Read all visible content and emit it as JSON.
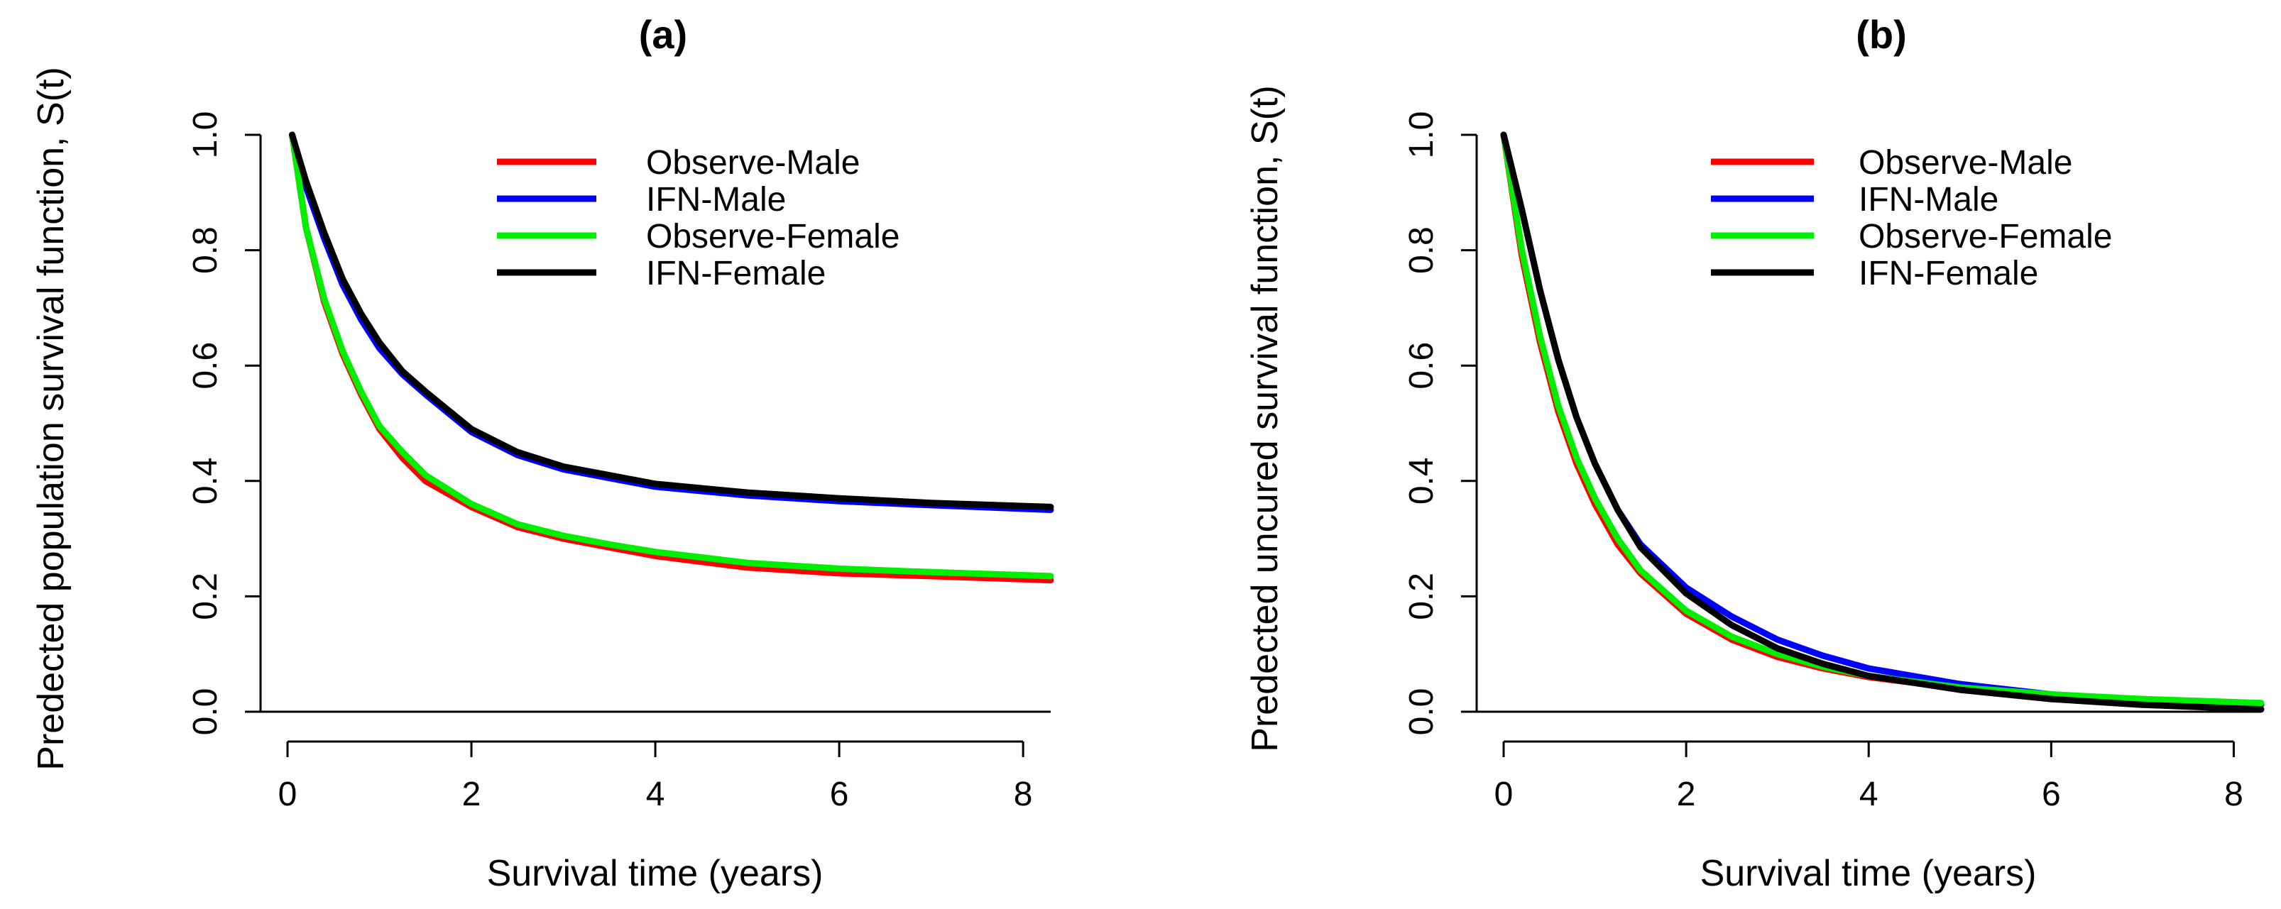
{
  "chart_data": [
    {
      "type": "line",
      "title": "(a)",
      "xlabel": "Survival time (years)",
      "ylabel": "Predected population survival function, S(t)",
      "xlim": [
        0,
        8.3
      ],
      "ylim": [
        0,
        1
      ],
      "xticks": [
        0,
        2,
        4,
        6,
        8
      ],
      "yticks": [
        0.0,
        0.2,
        0.4,
        0.6,
        0.8,
        1.0
      ],
      "ytick_labels": [
        "0.0",
        "0.2",
        "0.4",
        "0.6",
        "0.8",
        "1.0"
      ],
      "grid": false,
      "legend_position": "top-right",
      "series": [
        {
          "name": "Observe-Male",
          "color": "#ff0000",
          "x": [
            0.05,
            0.2,
            0.4,
            0.6,
            0.8,
            1.0,
            1.25,
            1.5,
            2.0,
            2.5,
            3.0,
            3.5,
            4.0,
            5.0,
            6.0,
            7.0,
            8.3
          ],
          "y": [
            1.0,
            0.84,
            0.71,
            0.62,
            0.55,
            0.49,
            0.44,
            0.4,
            0.355,
            0.32,
            0.3,
            0.285,
            0.27,
            0.25,
            0.24,
            0.235,
            0.228
          ]
        },
        {
          "name": "IFN-Male",
          "color": "#0000ff",
          "x": [
            0.05,
            0.2,
            0.4,
            0.6,
            0.8,
            1.0,
            1.25,
            1.5,
            2.0,
            2.5,
            3.0,
            3.5,
            4.0,
            5.0,
            6.0,
            7.0,
            8.3
          ],
          "y": [
            1.0,
            0.91,
            0.82,
            0.74,
            0.68,
            0.63,
            0.585,
            0.55,
            0.485,
            0.445,
            0.42,
            0.405,
            0.39,
            0.375,
            0.365,
            0.358,
            0.35
          ]
        },
        {
          "name": "Observe-Female",
          "color": "#00ee00",
          "x": [
            0.05,
            0.2,
            0.4,
            0.6,
            0.8,
            1.0,
            1.25,
            1.5,
            2.0,
            2.5,
            3.0,
            3.5,
            4.0,
            5.0,
            6.0,
            7.0,
            8.3
          ],
          "y": [
            1.0,
            0.84,
            0.715,
            0.625,
            0.555,
            0.495,
            0.45,
            0.41,
            0.36,
            0.325,
            0.305,
            0.29,
            0.277,
            0.258,
            0.248,
            0.242,
            0.235
          ]
        },
        {
          "name": "IFN-Female",
          "color": "#000000",
          "x": [
            0.05,
            0.2,
            0.4,
            0.6,
            0.8,
            1.0,
            1.25,
            1.5,
            2.0,
            2.5,
            3.0,
            3.5,
            4.0,
            5.0,
            6.0,
            7.0,
            8.3
          ],
          "y": [
            1.0,
            0.92,
            0.83,
            0.75,
            0.69,
            0.64,
            0.59,
            0.555,
            0.49,
            0.45,
            0.425,
            0.41,
            0.395,
            0.38,
            0.37,
            0.362,
            0.355
          ]
        }
      ]
    },
    {
      "type": "line",
      "title": "(b)",
      "xlabel": "Survival time (years)",
      "ylabel": "Predected uncured survival function, S(t)",
      "xlim": [
        0,
        8.3
      ],
      "ylim": [
        0,
        1
      ],
      "xticks": [
        0,
        2,
        4,
        6,
        8
      ],
      "yticks": [
        0.0,
        0.2,
        0.4,
        0.6,
        0.8,
        1.0
      ],
      "ytick_labels": [
        "0.0",
        "0.2",
        "0.4",
        "0.6",
        "0.8",
        "1.0"
      ],
      "grid": false,
      "legend_position": "top-right",
      "series": [
        {
          "name": "Observe-Male",
          "color": "#ff0000",
          "x": [
            0.0,
            0.2,
            0.4,
            0.6,
            0.8,
            1.0,
            1.25,
            1.5,
            2.0,
            2.5,
            3.0,
            3.5,
            4.0,
            5.0,
            6.0,
            7.0,
            8.3
          ],
          "y": [
            1.0,
            0.79,
            0.64,
            0.52,
            0.43,
            0.36,
            0.29,
            0.24,
            0.17,
            0.125,
            0.095,
            0.075,
            0.06,
            0.04,
            0.027,
            0.018,
            0.012
          ]
        },
        {
          "name": "IFN-Male",
          "color": "#0000ff",
          "x": [
            0.0,
            0.2,
            0.4,
            0.6,
            0.8,
            1.0,
            1.25,
            1.5,
            2.0,
            2.5,
            3.0,
            3.5,
            4.0,
            5.0,
            6.0,
            7.0,
            8.3
          ],
          "y": [
            1.0,
            0.87,
            0.73,
            0.61,
            0.51,
            0.43,
            0.35,
            0.29,
            0.215,
            0.165,
            0.125,
            0.097,
            0.075,
            0.048,
            0.03,
            0.02,
            0.013
          ]
        },
        {
          "name": "Observe-Female",
          "color": "#00ee00",
          "x": [
            0.0,
            0.2,
            0.4,
            0.6,
            0.8,
            1.0,
            1.25,
            1.5,
            2.0,
            2.5,
            3.0,
            3.5,
            4.0,
            5.0,
            6.0,
            7.0,
            8.3
          ],
          "y": [
            1.0,
            0.8,
            0.65,
            0.53,
            0.44,
            0.37,
            0.3,
            0.245,
            0.175,
            0.13,
            0.1,
            0.078,
            0.062,
            0.042,
            0.03,
            0.022,
            0.015
          ]
        },
        {
          "name": "IFN-Female",
          "color": "#000000",
          "x": [
            0.0,
            0.2,
            0.4,
            0.6,
            0.8,
            1.0,
            1.25,
            1.5,
            2.0,
            2.5,
            3.0,
            3.5,
            4.0,
            5.0,
            6.0,
            7.0,
            8.3
          ],
          "y": [
            1.0,
            0.87,
            0.73,
            0.61,
            0.51,
            0.43,
            0.35,
            0.285,
            0.205,
            0.15,
            0.11,
            0.083,
            0.062,
            0.038,
            0.022,
            0.012,
            0.004
          ]
        }
      ]
    }
  ]
}
